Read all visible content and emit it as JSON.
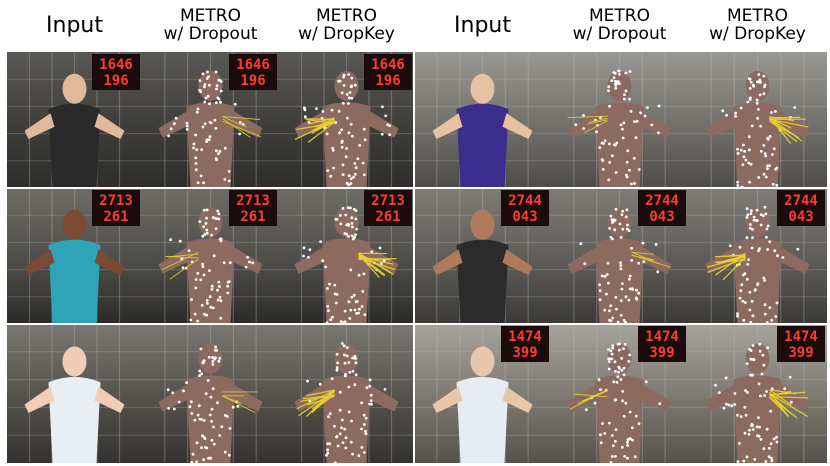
{
  "header": {
    "left": {
      "input": "Input",
      "dropout": [
        "METRO",
        "w/ Dropout"
      ],
      "dropkey": [
        "METRO",
        "w/ DropKey"
      ]
    },
    "right": {
      "input": "Input",
      "dropout": [
        "METRO",
        "w/ Dropout"
      ],
      "dropkey": [
        "METRO",
        "w/ DropKey"
      ]
    }
  },
  "rows": [
    {
      "left_counter": [
        "1646",
        "196"
      ],
      "right_counter": []
    },
    {
      "left_counter": [
        "2713",
        "261"
      ],
      "right_counter": [
        "2744",
        "043"
      ]
    },
    {
      "left_counter": [],
      "right_counter": [
        "1474",
        "399"
      ]
    }
  ],
  "colors": {
    "mesh": "#8c6a60",
    "vertex": "#ffffff",
    "highlight": "#e8d12a",
    "counter": "#ff3b2f",
    "studio": "#4a4a48"
  }
}
